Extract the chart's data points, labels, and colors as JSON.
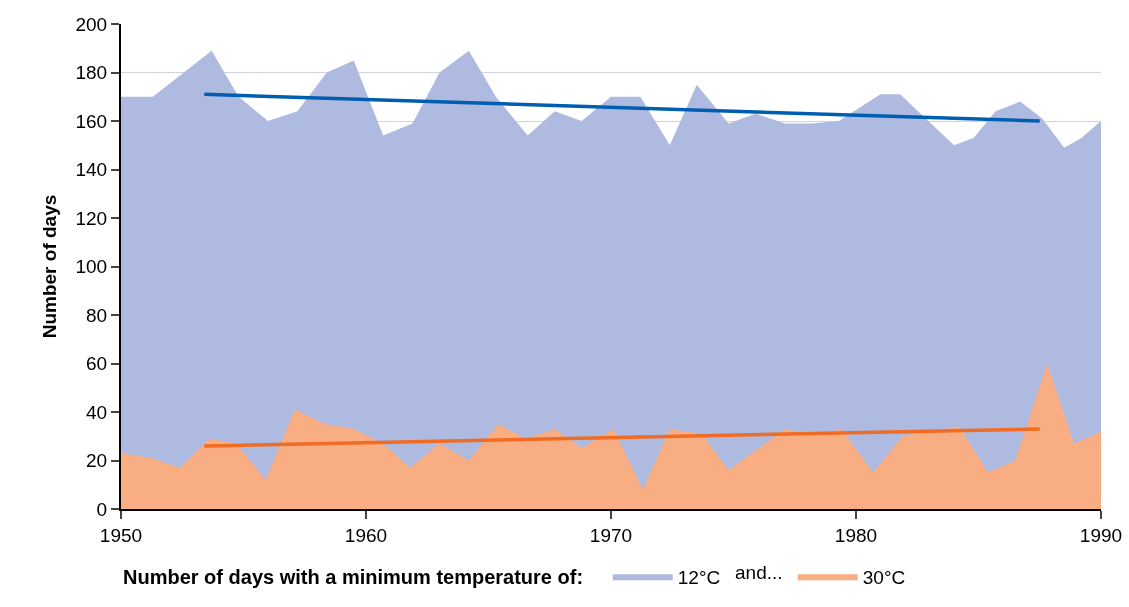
{
  "chart_data": {
    "type": "area",
    "ylabel": "Number of days",
    "legend_title": "Number of days with a minimum temperature of:",
    "legend": "bottom",
    "grid": "y",
    "xlim": [
      1950,
      1990
    ],
    "xticks": [
      1950,
      1960,
      1970,
      1980,
      1990
    ],
    "ylim": [
      0,
      200
    ],
    "yticks": [
      0,
      20,
      40,
      60,
      80,
      100,
      120,
      140,
      160,
      180,
      200
    ],
    "annotations": [
      "and..."
    ],
    "series": [
      {
        "name": "12°C",
        "color": "#aebadf",
        "x": [
          1950.0,
          1951.3,
          1953.7,
          1954.8,
          1956.0,
          1957.2,
          1958.4,
          1959.5,
          1960.7,
          1961.9,
          1963.0,
          1964.2,
          1965.3,
          1966.6,
          1967.7,
          1968.8,
          1970.0,
          1971.2,
          1972.4,
          1973.5,
          1974.8,
          1975.9,
          1977.1,
          1978.2,
          1979.3,
          1981.0,
          1981.8,
          1984.0,
          1984.8,
          1985.7,
          1986.7,
          1987.6,
          1988.5,
          1989.2,
          1990.0
        ],
        "values": [
          170,
          170,
          189,
          170,
          160,
          164,
          180,
          185,
          154,
          159,
          180,
          189,
          170,
          154,
          164,
          160,
          170,
          170,
          150,
          175,
          159,
          163,
          159,
          159,
          160,
          171,
          171,
          150,
          153,
          164,
          168,
          161,
          149,
          153,
          160
        ]
      },
      {
        "name": "30°C",
        "color": "#f8ad82",
        "x": [
          1950.0,
          1951.2,
          1952.4,
          1953.6,
          1954.7,
          1955.9,
          1957.1,
          1958.3,
          1959.5,
          1960.7,
          1961.8,
          1963.0,
          1964.2,
          1965.4,
          1966.5,
          1967.7,
          1968.8,
          1970.1,
          1971.3,
          1972.4,
          1973.7,
          1974.8,
          1977.1,
          1978.3,
          1979.4,
          1980.7,
          1981.9,
          1984.2,
          1985.4,
          1986.5,
          1987.8,
          1988.9,
          1990.0
        ],
        "values": [
          23,
          21,
          17,
          29,
          27,
          12,
          41,
          35,
          33,
          27,
          17,
          27,
          20,
          35,
          29,
          33,
          25,
          33,
          8,
          33,
          31,
          16,
          33,
          30,
          33,
          15,
          30,
          34,
          15,
          20,
          60,
          27,
          32
        ]
      },
      {
        "type": "line",
        "color": "#005eb0",
        "x": [
          1953.4,
          1987.5
        ],
        "values": [
          171,
          160
        ]
      },
      {
        "type": "line",
        "color": "#f26b22",
        "x": [
          1953.4,
          1987.5
        ],
        "values": [
          26,
          33
        ]
      }
    ]
  }
}
